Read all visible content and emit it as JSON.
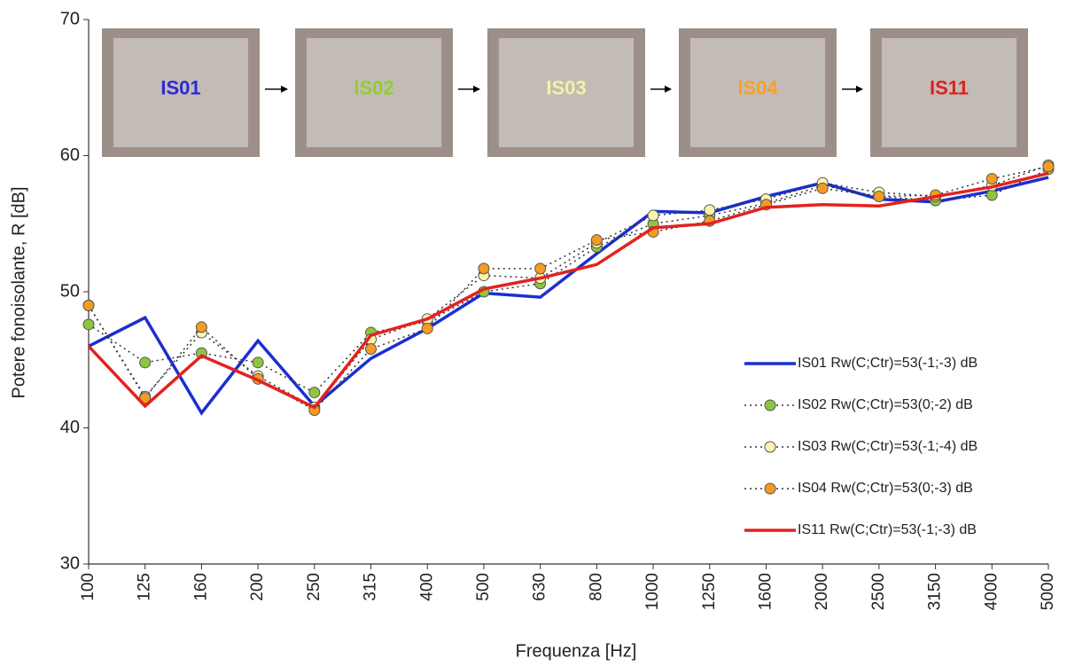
{
  "chart_data": {
    "type": "line",
    "x_label": "Frequenza [Hz]",
    "y_label": "Potere fonoisolante, R [dB]",
    "categories": [
      "100",
      "125",
      "160",
      "200",
      "250",
      "315",
      "400",
      "500",
      "630",
      "800",
      "1000",
      "1250",
      "1600",
      "2000",
      "2500",
      "3150",
      "4000",
      "5000"
    ],
    "ylim": [
      30,
      70
    ],
    "yticks": [
      30,
      40,
      50,
      60,
      70
    ],
    "image_labels": [
      {
        "text": "IS01",
        "color": "#2b2bd6"
      },
      {
        "text": "IS02",
        "color": "#8fcf2f"
      },
      {
        "text": "IS03",
        "color": "#f4f0a8"
      },
      {
        "text": "IS04",
        "color": "#f7a12a"
      },
      {
        "text": "IS11",
        "color": "#e0201e"
      }
    ],
    "series": [
      {
        "name": "IS01 Rw(C;Ctr)=53(-1;-3) dB",
        "color": "#1a2fd1",
        "line_style": "solid",
        "marker": false,
        "values": [
          46.0,
          48.1,
          41.1,
          46.4,
          41.6,
          45.1,
          47.3,
          49.9,
          49.6,
          52.8,
          55.9,
          55.8,
          57.0,
          58.0,
          56.8,
          56.6,
          57.4,
          58.4
        ]
      },
      {
        "name": "IS02 Rw(C;Ctr)=53(0;-2) dB",
        "color": "#8cc63f",
        "line_style": "dotted",
        "marker": true,
        "values": [
          47.6,
          44.8,
          45.5,
          44.8,
          42.6,
          47.0,
          47.8,
          50.0,
          50.6,
          53.3,
          55.0,
          55.6,
          56.5,
          57.8,
          57.0,
          56.7,
          57.1,
          59.0
        ]
      },
      {
        "name": "IS03 Rw(C;Ctr)=53(-1;-4) dB",
        "color": "#fbf3b0",
        "line_style": "dotted",
        "marker": true,
        "values": [
          49.0,
          42.3,
          47.0,
          43.8,
          41.5,
          46.5,
          48.0,
          51.2,
          51.0,
          53.6,
          55.6,
          56.0,
          56.8,
          58.0,
          57.3,
          57.0,
          57.8,
          59.3
        ]
      },
      {
        "name": "IS04 Rw(C;Ctr)=53(0;-3) dB",
        "color": "#f39c24",
        "line_style": "dotted",
        "marker": true,
        "values": [
          49.0,
          42.2,
          47.4,
          43.6,
          41.3,
          45.8,
          47.3,
          51.7,
          51.7,
          53.8,
          54.4,
          55.2,
          56.4,
          57.6,
          57.0,
          57.1,
          58.3,
          59.2
        ]
      },
      {
        "name": "IS11 Rw(C;Ctr)=53(-1;-3) dB",
        "color": "#e3221f",
        "line_style": "solid",
        "marker": false,
        "values": [
          46.0,
          41.6,
          45.3,
          43.5,
          41.5,
          46.8,
          48.0,
          50.2,
          51.0,
          52.0,
          54.7,
          55.0,
          56.2,
          56.4,
          56.3,
          57.0,
          57.7,
          58.7
        ]
      }
    ]
  }
}
